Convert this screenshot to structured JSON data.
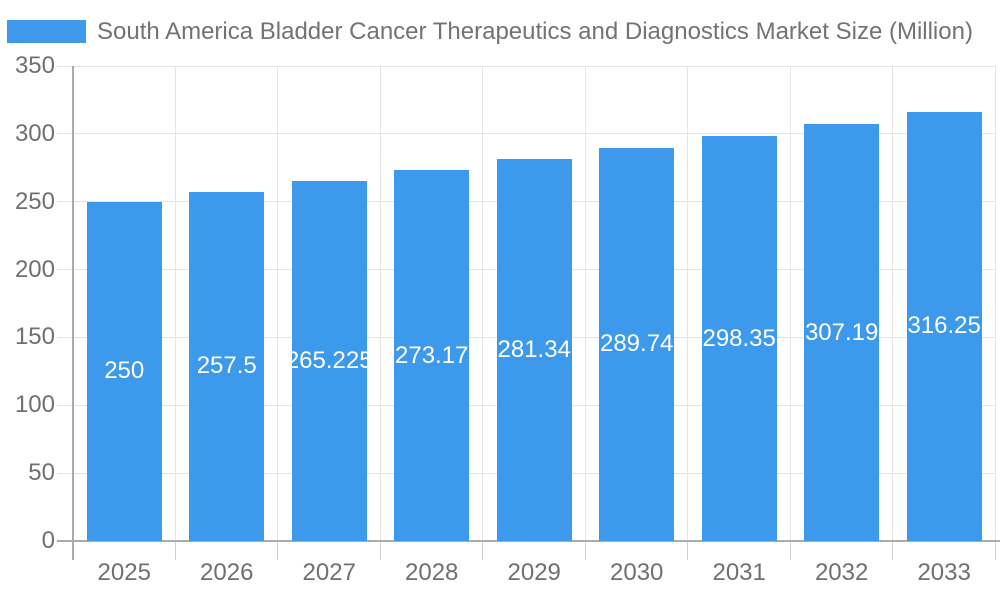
{
  "legend": {
    "position": "top-left",
    "label": "South America Bladder Cancer Therapeutics and Diagnostics Market Size (Million)"
  },
  "colors": {
    "bar": "#3c99ec",
    "title_text": "#737373",
    "axis_label_text": "#707070",
    "value_label_text": "#ffffff",
    "grid_line": "#e5e5e5",
    "tick_line": "#cfcfcf",
    "axis_line": "#ababab",
    "background": "#ffffff"
  },
  "chart_data": {
    "type": "bar",
    "title": "South America Bladder Cancer Therapeutics and Diagnostics Market Size (Million)",
    "categories": [
      "2025",
      "2026",
      "2027",
      "2028",
      "2029",
      "2030",
      "2031",
      "2032",
      "2033"
    ],
    "series": [
      {
        "name": "South America Bladder Cancer Therapeutics and Diagnostics Market Size (Million)",
        "values": [
          250,
          257.5,
          265.225,
          273.17,
          281.34,
          289.74,
          298.35,
          307.19,
          316.25
        ]
      }
    ],
    "value_labels": [
      "250",
      "257.5",
      "265.225",
      "273.17",
      "281.34",
      "289.74",
      "298.35",
      "307.19",
      "316.25"
    ],
    "xlabel": "",
    "ylabel": "",
    "ylim": [
      0,
      350
    ],
    "yticks": [
      0,
      50,
      100,
      150,
      200,
      250,
      300,
      350
    ],
    "grid": "on",
    "legend_position": "top-left"
  }
}
